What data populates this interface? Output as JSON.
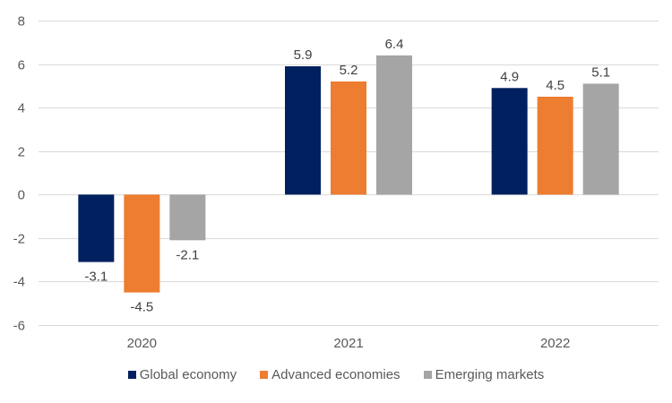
{
  "chart_data": {
    "type": "bar",
    "title": "",
    "xlabel": "",
    "ylabel": "",
    "categories": [
      "2020",
      "2021",
      "2022"
    ],
    "series": [
      {
        "name": "Global economy",
        "color": "#002060",
        "values": [
          -3.1,
          5.9,
          4.9
        ]
      },
      {
        "name": "Advanced economies",
        "color": "#ed7d31",
        "values": [
          -4.5,
          5.2,
          4.5
        ]
      },
      {
        "name": "Emerging markets",
        "color": "#a5a5a5",
        "values": [
          -2.1,
          6.4,
          5.1
        ]
      }
    ],
    "ylim": [
      -6,
      8
    ],
    "yticks": [
      8,
      6,
      4,
      2,
      0,
      -2,
      -4,
      -6
    ],
    "ytick_labels": [
      "8",
      "6",
      "4",
      "2",
      "0",
      "-2",
      "-4",
      "-6"
    ],
    "grid": true,
    "data_labels": true,
    "legend_position": "bottom"
  }
}
